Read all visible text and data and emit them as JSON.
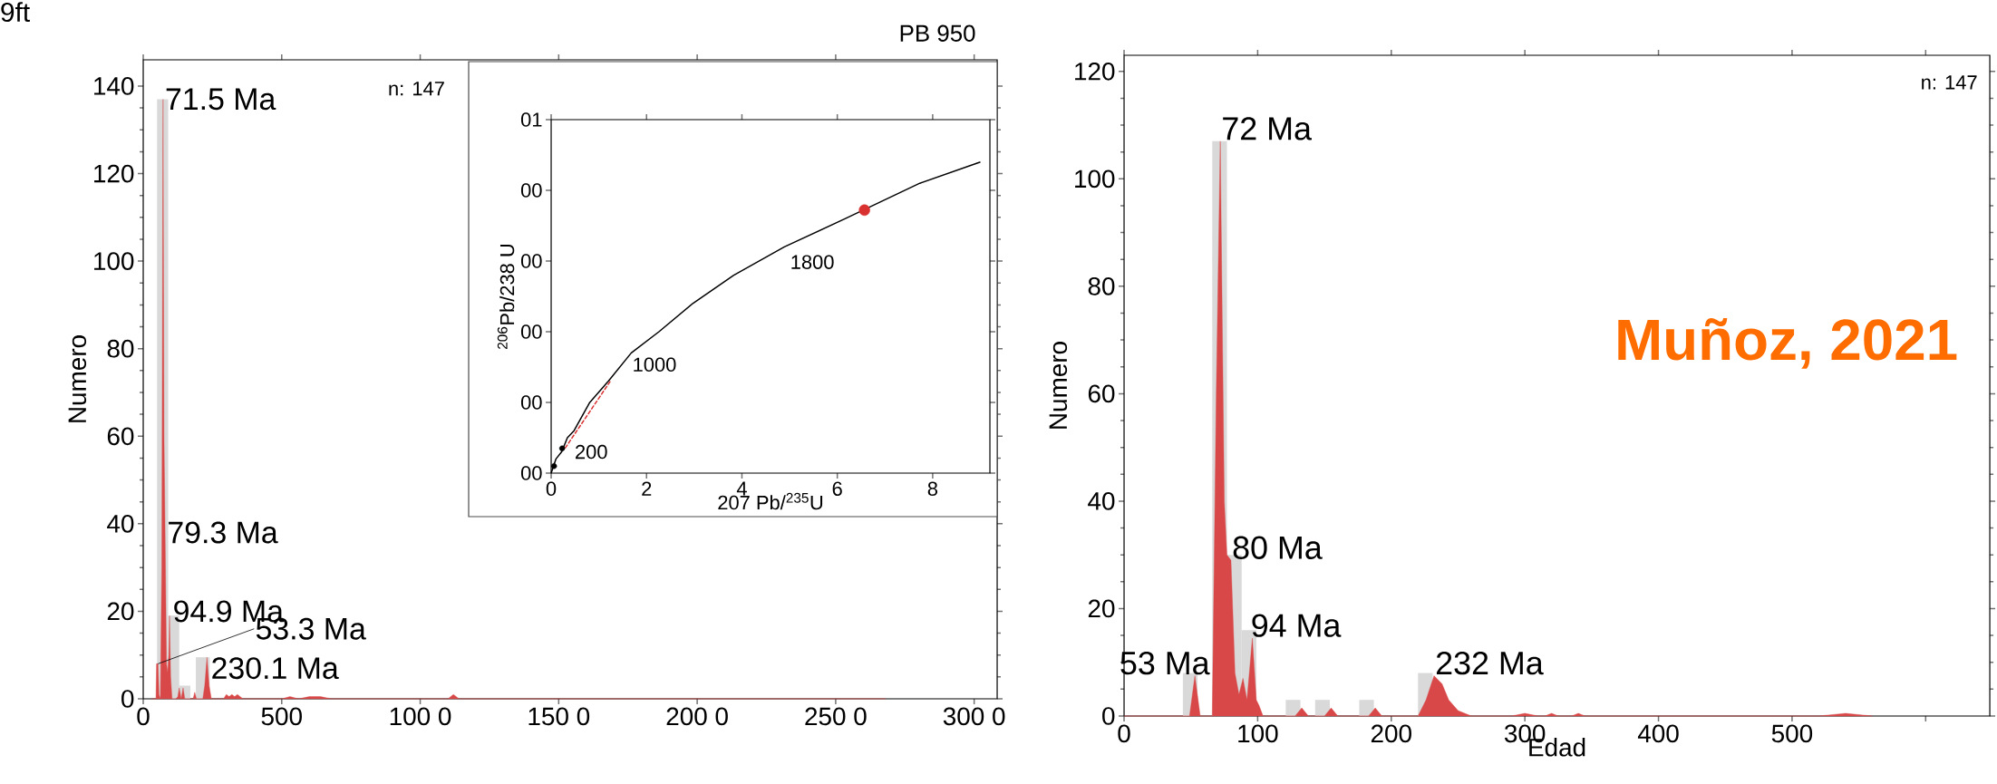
{
  "chart_data": [
    {
      "type": "histogram",
      "title": "PB 950",
      "ylabel": "Numero",
      "bins": [
        50,
        90,
        130,
        170,
        190,
        240
      ],
      "values": [
        137,
        19,
        3,
        0,
        9.5
      ],
      "color": "#d9d9d9",
      "series": [
        {
          "type": "area",
          "color": "#d94848",
          "x": [
            30,
            46,
            48,
            53.3,
            57,
            62,
            67,
            71.5,
            75,
            79.3,
            84,
            88,
            92,
            94.9,
            99,
            104,
            118,
            125,
            130,
            137,
            144,
            150,
            155,
            162,
            170,
            180,
            186,
            192,
            205,
            215,
            222,
            230.1,
            238,
            246,
            260,
            290,
            300,
            310,
            320,
            330,
            340,
            360,
            500,
            530,
            560,
            600,
            640,
            680,
            1000,
            1100,
            1120,
            1140,
            1500,
            2000,
            2680
          ],
          "values": [
            0,
            0,
            8,
            8,
            1,
            0,
            30,
            137,
            60,
            36,
            8,
            6,
            10,
            19,
            5,
            0,
            0,
            0.5,
            2.5,
            0,
            2.5,
            0,
            0,
            0,
            0,
            0,
            1.5,
            0,
            0,
            0,
            3,
            9.5,
            3,
            0,
            0,
            0,
            1,
            0.5,
            1,
            0.5,
            1,
            0,
            0,
            0.5,
            0,
            0.5,
            0.5,
            0,
            0,
            0,
            1,
            0,
            0,
            0,
            0
          ]
        }
      ],
      "xlim": [
        0,
        3083
      ],
      "ylim": [
        0,
        146
      ],
      "xticks": [
        0,
        500,
        {
          "value": 1000,
          "label": "100 0"
        },
        {
          "value": 1500,
          "label": "150 0"
        },
        {
          "value": 2000,
          "label": "200 0"
        },
        {
          "value": 2500,
          "label": "250 0"
        },
        {
          "value": 3000,
          "label": "300 0"
        }
      ],
      "yticks": [
        0,
        20,
        40,
        60,
        80,
        100,
        120,
        140
      ],
      "annotations": [
        "9ft",
        "n: 147",
        {
          "text": "71.5 Ma",
          "x": 71.5,
          "y": 137
        },
        {
          "text": "79.3 Ma",
          "x": 79.3,
          "y": 36
        },
        {
          "text": "94.9 Ma",
          "x": 94.9,
          "y": 19
        },
        {
          "text": "53.3 Ma",
          "x": 53.3,
          "y": 8
        },
        {
          "text": "230.1 Ma",
          "x": 230.1,
          "y": 9.5
        }
      ]
    },
    {
      "type": "line",
      "xlabel": "207 Pb/$^{235}$U",
      "ylabel": "$^{206}$Pb/238 U",
      "series": [
        {
          "type": "line",
          "color": "#000000",
          "x": [
            0,
            0.05,
            0.1,
            0.22,
            0.34,
            0.48,
            0.81,
            1.2,
            1.68,
            2.26,
            2.97,
            3.83,
            4.89,
            6.17,
            7.73,
            9.0
          ],
          "values": [
            0,
            0.01,
            0.02,
            0.03,
            0.05,
            0.06,
            0.1,
            0.13,
            0.17,
            0.2,
            0.24,
            0.28,
            0.32,
            0.36,
            0.41,
            0.44
          ]
        },
        {
          "type": "scatter",
          "color": "#000000",
          "marker": "circle",
          "x": [
            0.06,
            0.23
          ],
          "values": [
            0.01,
            0.035
          ]
        },
        {
          "type": "scatter",
          "color": "#d93030",
          "marker": "circle",
          "x": [
            6.57
          ],
          "values": [
            0.372
          ]
        },
        {
          "type": "line",
          "color": "#d93030",
          "line_style": "dashed",
          "x": [
            0.29,
            1.24
          ],
          "values": [
            0.035,
            0.13
          ]
        }
      ],
      "xlim": [
        0,
        9.2
      ],
      "ylim": [
        0,
        0.5
      ],
      "xticks": [
        0,
        2,
        4,
        6,
        8
      ],
      "yticks": [
        {
          "value": 0,
          "label": "00"
        },
        {
          "value": 0.1,
          "label": "00"
        },
        {
          "value": 0.2,
          "label": "00"
        },
        {
          "value": 0.3,
          "label": "00"
        },
        {
          "value": 0.4,
          "label": "00"
        },
        {
          "value": 0.5,
          "label": "01"
        }
      ],
      "annotations": [
        {
          "text": "200",
          "x": 0.22,
          "y": 0.03
        },
        {
          "text": "1000",
          "x": 1.68,
          "y": 0.17
        },
        {
          "text": "1800",
          "x": 4.89,
          "y": 0.32
        }
      ]
    },
    {
      "type": "histogram",
      "xlabel": "Edad",
      "ylabel": "Numero",
      "bins": [
        44,
        55,
        66,
        77,
        88,
        99,
        110,
        121,
        132,
        143,
        154,
        165,
        176,
        187,
        198,
        209,
        220,
        231,
        242
      ],
      "values": [
        8,
        0,
        107,
        30,
        16,
        0,
        0,
        3,
        0,
        3,
        0,
        0,
        3,
        0,
        0,
        0,
        8,
        0
      ],
      "color": "#d9d9d9",
      "series": [
        {
          "type": "area",
          "color": "#d94848",
          "x": [
            0,
            45,
            49,
            53,
            57,
            62,
            66,
            69,
            72,
            75,
            77,
            80,
            83,
            86,
            89,
            92,
            96,
            99,
            101,
            104,
            110,
            128,
            133,
            138,
            150,
            155,
            160,
            183,
            188,
            193,
            220,
            226,
            232,
            238,
            243,
            250,
            260,
            290,
            300,
            310,
            315,
            320,
            325,
            335,
            340,
            345,
            520,
            540,
            560
          ],
          "values": [
            0,
            0,
            0,
            7.5,
            0,
            0,
            0,
            60,
            107,
            40,
            30,
            29,
            8,
            4,
            7,
            3,
            14.5,
            3,
            2,
            0,
            0,
            0,
            1.5,
            0,
            0,
            1.5,
            0,
            0,
            1.5,
            0,
            0,
            3,
            7.5,
            6,
            3,
            1,
            0,
            0,
            0.5,
            0,
            0,
            0.5,
            0,
            0,
            0.5,
            0,
            0,
            0.5,
            0
          ]
        }
      ],
      "xlim": [
        0,
        648
      ],
      "ylim": [
        0,
        123
      ],
      "xticks": [
        0,
        100,
        200,
        300,
        400,
        500,
        {
          "value": 600,
          "label": null
        }
      ],
      "yticks": [
        0,
        20,
        40,
        60,
        80,
        100,
        120
      ],
      "annotations": [
        "n: 147",
        "Muñoz, 2021",
        {
          "text": "72 Ma",
          "x": 72,
          "y": 107
        },
        {
          "text": "80 Ma",
          "x": 80,
          "y": 29
        },
        {
          "text": "94 Ma",
          "x": 94,
          "y": 14.5
        },
        {
          "text": "53 Ma",
          "x": 53,
          "y": 7.5
        },
        {
          "text": "232 Ma",
          "x": 232,
          "y": 7.5
        }
      ]
    }
  ]
}
